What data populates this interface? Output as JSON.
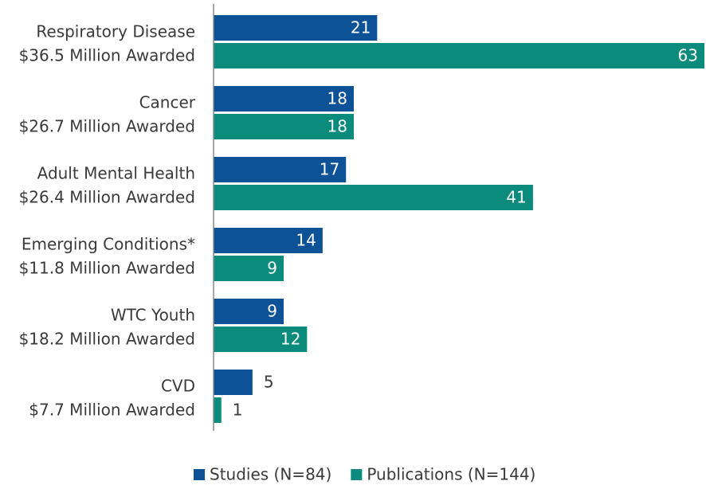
{
  "chart_data": {
    "type": "hbar",
    "categories": [
      [
        "Respiratory Disease",
        "$36.5 Million Awarded"
      ],
      [
        "Cancer",
        "$26.7 Million Awarded"
      ],
      [
        "Adult Mental Health",
        "$26.4 Million Awarded"
      ],
      [
        "Emerging Conditions*",
        "$11.8 Million Awarded"
      ],
      [
        "WTC Youth",
        "$18.2 Million Awarded"
      ],
      [
        "CVD",
        "$7.7 Million Awarded"
      ]
    ],
    "series": [
      {
        "name": "Studies (N=84)",
        "color": "#0d5296",
        "values": [
          21,
          18,
          17,
          14,
          9,
          5
        ]
      },
      {
        "name": "Publications (N=144)",
        "color": "#0b8b7c",
        "values": [
          63,
          18,
          41,
          9,
          12,
          1
        ]
      }
    ],
    "xlim": [
      0,
      63
    ],
    "legend": "bottom"
  }
}
